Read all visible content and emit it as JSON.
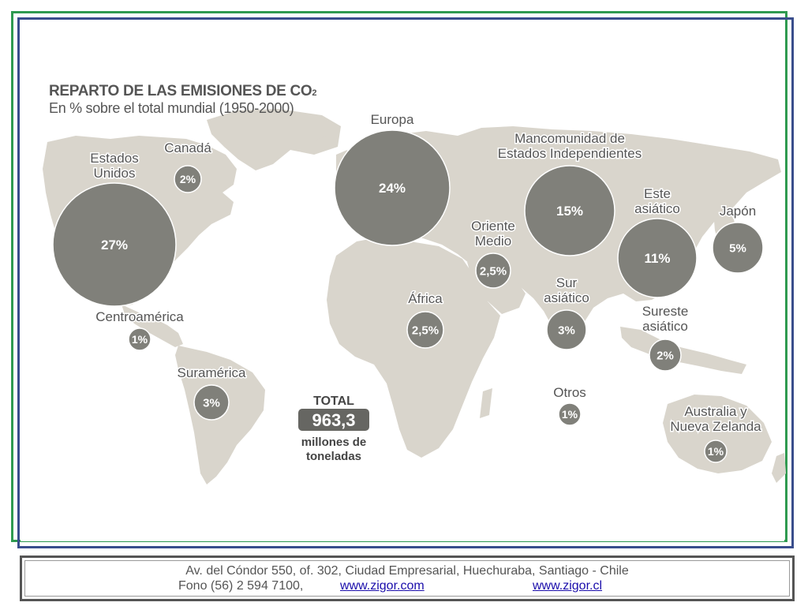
{
  "map": {
    "title": "REPARTO DE LAS EMISIONES DE CO",
    "title_subscript": "2",
    "subtitle": "En % sobre el total mundial (1950-2000)",
    "regions": [
      {
        "name": "Estados Unidos",
        "name_lines": [
          "Estados",
          "Unidos"
        ],
        "value": "27%"
      },
      {
        "name": "Canadá",
        "name_lines": [
          "Canadá"
        ],
        "value": "2%"
      },
      {
        "name": "Centroamérica",
        "name_lines": [
          "Centroamérica"
        ],
        "value": "1%"
      },
      {
        "name": "Suramérica",
        "name_lines": [
          "Suramérica"
        ],
        "value": "3%"
      },
      {
        "name": "Europa",
        "name_lines": [
          "Europa"
        ],
        "value": "24%"
      },
      {
        "name": "África",
        "name_lines": [
          "África"
        ],
        "value": "2,5%"
      },
      {
        "name": "Oriente Medio",
        "name_lines": [
          "Oriente",
          "Medio"
        ],
        "value": "2,5%"
      },
      {
        "name": "Mancomunidad de Estados Independientes",
        "name_lines": [
          "Mancomunidad de",
          "Estados Independientes"
        ],
        "value": "15%"
      },
      {
        "name": "Sur asiático",
        "name_lines": [
          "Sur",
          "asiático"
        ],
        "value": "3%"
      },
      {
        "name": "Este asiático",
        "name_lines": [
          "Este",
          "asiático"
        ],
        "value": "11%"
      },
      {
        "name": "Japón",
        "name_lines": [
          "Japón"
        ],
        "value": "5%"
      },
      {
        "name": "Sureste asiático",
        "name_lines": [
          "Sureste",
          "asiático"
        ],
        "value": "2%"
      },
      {
        "name": "Otros",
        "name_lines": [
          "Otros"
        ],
        "value": "1%"
      },
      {
        "name": "Australia y Nueva Zelanda",
        "name_lines": [
          "Australia y",
          "Nueva Zelanda"
        ],
        "value": "1%"
      }
    ],
    "total": {
      "label": "TOTAL",
      "value": "963,3",
      "unit_lines": [
        "millones de",
        "toneladas"
      ]
    },
    "colors": {
      "land": "#d9d5cc",
      "bubble": "#80807a",
      "bubble_text": "#ffffff",
      "label_text": "#555555",
      "total_box": "#666662"
    }
  },
  "footer": {
    "address": "Av.  del Cóndor 550, of. 302, Ciudad Empresarial, Huechuraba, Santiago - Chile",
    "phone": "Fono (56) 2 594 7100,",
    "link1": "www.zigor.com",
    "link2": "www.zigor.cl"
  }
}
